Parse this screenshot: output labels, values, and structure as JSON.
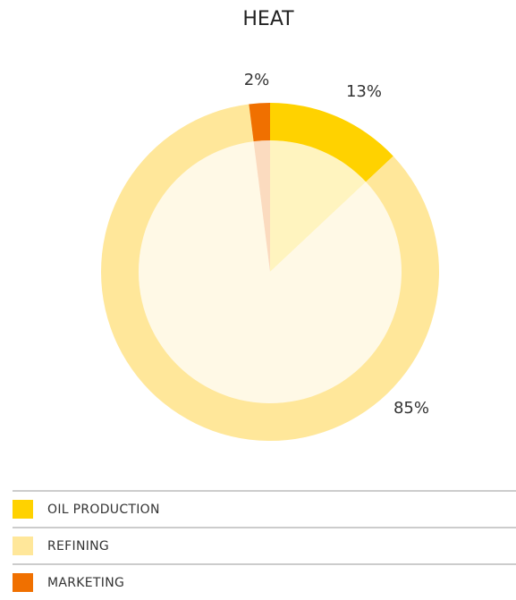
{
  "chart_data": {
    "type": "pie",
    "title": "HEAT",
    "categories": [
      "OIL PRODUCTION",
      "REFINING",
      "MARKETING"
    ],
    "values": [
      13,
      85,
      2
    ],
    "value_labels": [
      "13%",
      "85%",
      "2%"
    ],
    "colors": [
      "#ffd200",
      "#ffe79a",
      "#f07000"
    ],
    "legend": "bottom"
  }
}
